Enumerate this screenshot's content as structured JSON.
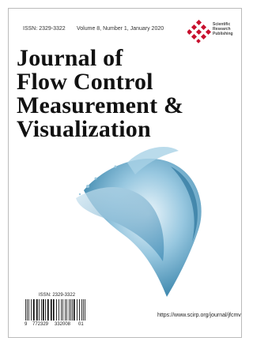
{
  "header": {
    "issn": "ISSN: 2329-3322",
    "volume": "Volume 8, Number 1, January 2020",
    "publisher": [
      "Scientific",
      "Research",
      "Publishing"
    ]
  },
  "title": [
    "Journal of",
    "Flow Control",
    "Measurement &",
    "Visualization"
  ],
  "barcode": {
    "issn": "ISSN: 2329-3322",
    "digits": [
      "9",
      "772329",
      "332008",
      "01"
    ]
  },
  "url": "https://www.scirp.org/journal/jfcmv"
}
